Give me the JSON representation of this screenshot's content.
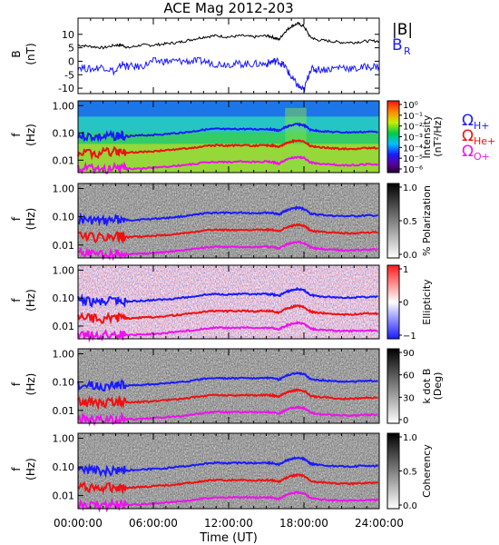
{
  "title": "ACE Mag 2012-203",
  "colors": {
    "bmag": "#000000",
    "br": "#1a1aff",
    "h_plus": "#1a1aff",
    "he_plus": "#ee1111",
    "o_plus": "#ee11ee",
    "axis": "#000000"
  },
  "chart_data": {
    "type": "line",
    "xlabel": "Time (UT)",
    "x_ticks": [
      "00:00:00",
      "06:00:00",
      "12:00:00",
      "18:00:00",
      "24:00:00"
    ],
    "xlim": [
      0,
      24
    ],
    "panels": [
      {
        "kind": "line",
        "ylabel": "B",
        "yunit": "(nT)",
        "ylim": [
          -12,
          16
        ],
        "yticks": [
          "10",
          "5",
          "0",
          "-5",
          "-10"
        ],
        "legend": [
          {
            "label": "|B|",
            "color_key": "bmag"
          },
          {
            "label": "B",
            "sub": "R",
            "color_key": "br"
          }
        ],
        "series": [
          {
            "name": "|B|",
            "x": [
              0,
              1,
              2,
              3,
              3.5,
              4,
              5,
              6,
              7,
              8,
              9,
              10,
              11,
              12,
              13,
              14,
              15,
              15.5,
              16,
              16.5,
              17,
              17.5,
              18,
              18.5,
              19,
              20,
              21,
              22,
              23,
              24
            ],
            "y": [
              6,
              5.5,
              5,
              6,
              6,
              5,
              6,
              6,
              6.5,
              7,
              8,
              9,
              9.5,
              9,
              9.5,
              9,
              9.5,
              9,
              8,
              11,
              13,
              14,
              13,
              9,
              8,
              7.5,
              7,
              7,
              7.5,
              7.5
            ]
          },
          {
            "name": "B_R",
            "x": [
              0,
              1,
              2,
              3,
              3.5,
              4,
              5,
              6,
              7,
              8,
              9,
              10,
              11,
              12,
              13,
              14,
              15,
              15.5,
              16,
              16.5,
              17,
              17.5,
              18,
              18.5,
              19,
              20,
              21,
              22,
              23,
              24
            ],
            "y": [
              -2,
              -3,
              -2,
              -4,
              -1,
              -2,
              -2,
              0,
              0,
              0,
              0,
              0,
              -1,
              -1,
              -1,
              -1,
              -1,
              0,
              0,
              -2,
              -6,
              -9,
              -11,
              -3,
              -3,
              -3,
              -2,
              -3,
              -2,
              -2
            ]
          }
        ]
      },
      {
        "kind": "spectrogram",
        "ylabel": "f",
        "yunit": "(Hz)",
        "yticks": [
          "1.00",
          "0.10",
          "0.01"
        ],
        "colorbar": {
          "label": "Intensity",
          "unit": "(nT²/Hz)",
          "ticks": [
            "10⁰",
            "10⁻¹",
            "10⁻²",
            "10⁻³",
            "10⁻⁴",
            "10⁻⁵",
            "10⁻⁶"
          ],
          "scheme": "rainbow"
        },
        "gyro_labels": [
          {
            "label": "Ω",
            "sub": "H+",
            "color_key": "h_plus"
          },
          {
            "label": "Ω",
            "sub": "He+",
            "color_key": "he_plus"
          },
          {
            "label": "Ω",
            "sub": "O+",
            "color_key": "o_plus"
          }
        ]
      },
      {
        "kind": "spectrogram",
        "ylabel": "f",
        "yunit": "(Hz)",
        "yticks": [
          "1.00",
          "0.10",
          "0.01"
        ],
        "colorbar": {
          "label": "% Polarization",
          "unit": "",
          "ticks": [
            "1.0",
            "0.5",
            "0.0"
          ],
          "scheme": "gray"
        }
      },
      {
        "kind": "spectrogram",
        "ylabel": "f",
        "yunit": "(Hz)",
        "yticks": [
          "1.00",
          "0.10",
          "0.01"
        ],
        "colorbar": {
          "label": "Ellipticity",
          "unit": "",
          "ticks": [
            "1",
            "0",
            "−1"
          ],
          "scheme": "bwr"
        }
      },
      {
        "kind": "spectrogram",
        "ylabel": "f",
        "yunit": "(Hz)",
        "yticks": [
          "1.00",
          "0.10",
          "0.01"
        ],
        "colorbar": {
          "label": "k dot B",
          "unit": "(Deg)",
          "ticks": [
            "90",
            "60",
            "30",
            "0"
          ],
          "scheme": "gray"
        }
      },
      {
        "kind": "spectrogram",
        "ylabel": "f",
        "yunit": "(Hz)",
        "yticks": [
          "1.00",
          "0.10",
          "0.01"
        ],
        "colorbar": {
          "label": "Coherency",
          "unit": "",
          "ticks": [
            "1.0",
            "0.5",
            "0.0"
          ],
          "scheme": "gray"
        }
      }
    ],
    "gyrofrequency_series": {
      "x": [
        0,
        1,
        2,
        3,
        3.5,
        4,
        5,
        6,
        7,
        8,
        9,
        10,
        11,
        12,
        13,
        14,
        15,
        15.5,
        16,
        16.5,
        17,
        17.5,
        18,
        18.5,
        19,
        20,
        21,
        22,
        23,
        24
      ],
      "h_plus_hz": [
        0.08,
        0.075,
        0.07,
        0.08,
        0.08,
        0.075,
        0.08,
        0.085,
        0.09,
        0.1,
        0.11,
        0.13,
        0.14,
        0.135,
        0.14,
        0.135,
        0.14,
        0.135,
        0.12,
        0.16,
        0.19,
        0.21,
        0.19,
        0.13,
        0.12,
        0.11,
        0.105,
        0.105,
        0.11,
        0.11
      ],
      "he_plus_hz": [
        0.02,
        0.019,
        0.018,
        0.02,
        0.02,
        0.019,
        0.02,
        0.021,
        0.023,
        0.025,
        0.028,
        0.032,
        0.035,
        0.034,
        0.035,
        0.034,
        0.035,
        0.034,
        0.03,
        0.04,
        0.048,
        0.053,
        0.048,
        0.033,
        0.03,
        0.028,
        0.026,
        0.026,
        0.028,
        0.028
      ],
      "o_plus_hz": [
        0.005,
        0.0048,
        0.0045,
        0.005,
        0.005,
        0.0048,
        0.005,
        0.0053,
        0.0057,
        0.0063,
        0.007,
        0.008,
        0.0088,
        0.0085,
        0.0088,
        0.0085,
        0.0088,
        0.0085,
        0.0075,
        0.01,
        0.012,
        0.013,
        0.012,
        0.0083,
        0.0075,
        0.007,
        0.0066,
        0.0066,
        0.007,
        0.007
      ]
    }
  }
}
